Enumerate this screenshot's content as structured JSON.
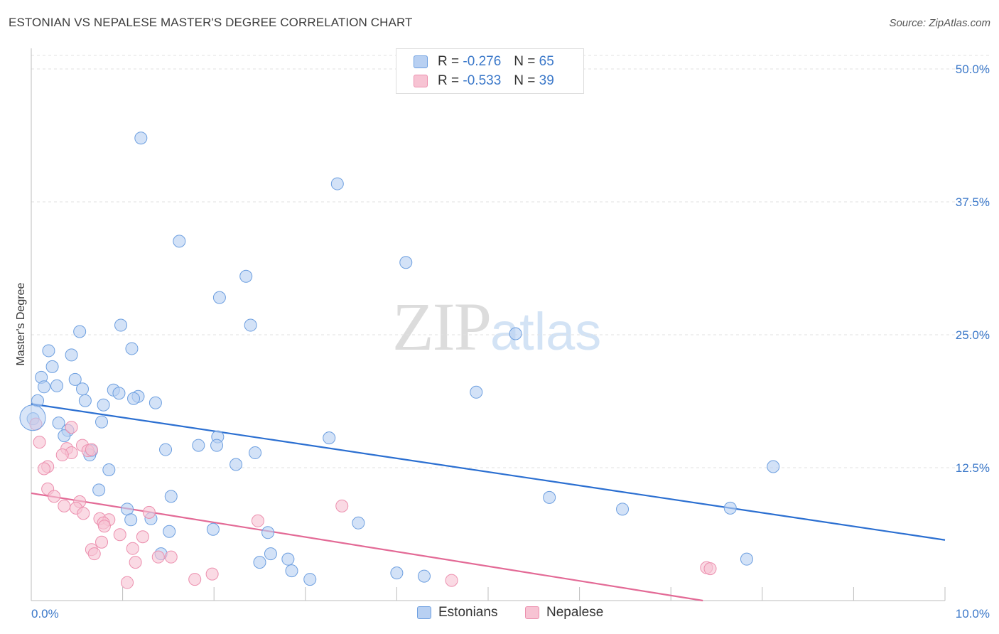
{
  "title": "ESTONIAN VS NEPALESE MASTER'S DEGREE CORRELATION CHART",
  "source": "Source: ZipAtlas.com",
  "watermark": {
    "zip": "ZIP",
    "atlas": "atlas"
  },
  "legend": {
    "rows": [
      {
        "r_label": "R =",
        "r_value": "-0.276",
        "n_label": "N =",
        "n_value": "65"
      },
      {
        "r_label": "R =",
        "r_value": "-0.533",
        "n_label": "N =",
        "n_value": "39"
      }
    ]
  },
  "bottom_legend": [
    "Estonians",
    "Nepalese"
  ],
  "colors": {
    "blue_fill": "#b8d0f2",
    "blue_stroke": "#6d9fe0",
    "blue_line": "#2b6fd1",
    "pink_fill": "#f7c3d3",
    "pink_stroke": "#ec8fae",
    "pink_line": "#e36a96",
    "grid": "#e2e2e2",
    "tick_text": "#3b78c9"
  },
  "chart_data": {
    "type": "scatter",
    "title": "ESTONIAN VS NEPALESE MASTER'S DEGREE CORRELATION CHART",
    "xlabel": "",
    "ylabel": "Master's Degree",
    "xlim": [
      0,
      10
    ],
    "ylim": [
      0,
      50
    ],
    "x_tick_labels": [
      "0.0%",
      "10.0%"
    ],
    "y_ticks": [
      12.5,
      25.0,
      37.5,
      50.0
    ],
    "y_tick_labels": [
      "12.5%",
      "25.0%",
      "37.5%",
      "50.0%"
    ],
    "series": [
      {
        "name": "Estonians",
        "r": -0.276,
        "n": 65,
        "trend": {
          "x": [
            0,
            10
          ],
          "y": [
            18.5,
            5.7
          ]
        },
        "points": [
          [
            1.2,
            43.5
          ],
          [
            3.35,
            39.2
          ],
          [
            1.62,
            33.8
          ],
          [
            4.1,
            31.8
          ],
          [
            2.35,
            30.5
          ],
          [
            2.06,
            28.5
          ],
          [
            2.4,
            25.9
          ],
          [
            0.98,
            25.9
          ],
          [
            0.53,
            25.3
          ],
          [
            5.3,
            25.1
          ],
          [
            1.1,
            23.7
          ],
          [
            0.19,
            23.5
          ],
          [
            0.44,
            23.1
          ],
          [
            0.23,
            22.0
          ],
          [
            0.11,
            21.0
          ],
          [
            0.48,
            20.8
          ],
          [
            0.14,
            20.1
          ],
          [
            0.28,
            20.2
          ],
          [
            0.56,
            19.9
          ],
          [
            0.9,
            19.8
          ],
          [
            0.96,
            19.5
          ],
          [
            1.17,
            19.2
          ],
          [
            1.12,
            19.0
          ],
          [
            4.87,
            19.6
          ],
          [
            0.07,
            18.8
          ],
          [
            0.59,
            18.8
          ],
          [
            0.79,
            18.4
          ],
          [
            1.36,
            18.6
          ],
          [
            0.02,
            17.1
          ],
          [
            0.3,
            16.7
          ],
          [
            0.77,
            16.8
          ],
          [
            0.4,
            16.0
          ],
          [
            0.36,
            15.5
          ],
          [
            2.04,
            15.4
          ],
          [
            3.26,
            15.3
          ],
          [
            1.83,
            14.6
          ],
          [
            2.03,
            14.6
          ],
          [
            0.66,
            14.1
          ],
          [
            1.47,
            14.2
          ],
          [
            2.45,
            13.9
          ],
          [
            0.64,
            13.7
          ],
          [
            2.24,
            12.8
          ],
          [
            8.12,
            12.6
          ],
          [
            0.85,
            12.3
          ],
          [
            0.74,
            10.4
          ],
          [
            1.53,
            9.8
          ],
          [
            5.67,
            9.7
          ],
          [
            1.05,
            8.6
          ],
          [
            6.47,
            8.6
          ],
          [
            7.65,
            8.7
          ],
          [
            1.09,
            7.6
          ],
          [
            1.31,
            7.7
          ],
          [
            3.58,
            7.3
          ],
          [
            1.51,
            6.5
          ],
          [
            1.99,
            6.7
          ],
          [
            2.59,
            6.4
          ],
          [
            2.62,
            4.4
          ],
          [
            1.42,
            4.4
          ],
          [
            7.83,
            3.9
          ],
          [
            2.81,
            3.9
          ],
          [
            2.5,
            3.6
          ],
          [
            2.85,
            2.8
          ],
          [
            4.0,
            2.6
          ],
          [
            4.3,
            2.3
          ],
          [
            3.05,
            2.0
          ]
        ]
      },
      {
        "name": "Nepalese",
        "r": -0.533,
        "n": 39,
        "trend": {
          "x": [
            0,
            7.35
          ],
          "y": [
            10.1,
            0.0
          ]
        },
        "points": [
          [
            0.05,
            16.6
          ],
          [
            0.44,
            16.3
          ],
          [
            0.09,
            14.9
          ],
          [
            0.56,
            14.6
          ],
          [
            0.39,
            14.3
          ],
          [
            0.62,
            14.1
          ],
          [
            0.44,
            13.9
          ],
          [
            0.34,
            13.7
          ],
          [
            0.66,
            14.2
          ],
          [
            0.18,
            12.6
          ],
          [
            0.14,
            12.4
          ],
          [
            0.18,
            10.5
          ],
          [
            0.25,
            9.8
          ],
          [
            0.53,
            9.3
          ],
          [
            0.36,
            8.9
          ],
          [
            0.49,
            8.7
          ],
          [
            3.4,
            8.9
          ],
          [
            0.57,
            8.2
          ],
          [
            1.29,
            8.3
          ],
          [
            0.75,
            7.7
          ],
          [
            0.85,
            7.6
          ],
          [
            2.48,
            7.5
          ],
          [
            0.79,
            7.3
          ],
          [
            0.8,
            7.0
          ],
          [
            0.97,
            6.2
          ],
          [
            1.22,
            6.0
          ],
          [
            0.77,
            5.5
          ],
          [
            0.66,
            4.8
          ],
          [
            1.11,
            4.9
          ],
          [
            0.69,
            4.4
          ],
          [
            1.39,
            4.1
          ],
          [
            1.53,
            4.1
          ],
          [
            1.14,
            3.6
          ],
          [
            7.39,
            3.1
          ],
          [
            7.43,
            3.0
          ],
          [
            1.98,
            2.5
          ],
          [
            1.79,
            2.0
          ],
          [
            4.6,
            1.9
          ],
          [
            1.05,
            1.7
          ]
        ]
      }
    ]
  }
}
